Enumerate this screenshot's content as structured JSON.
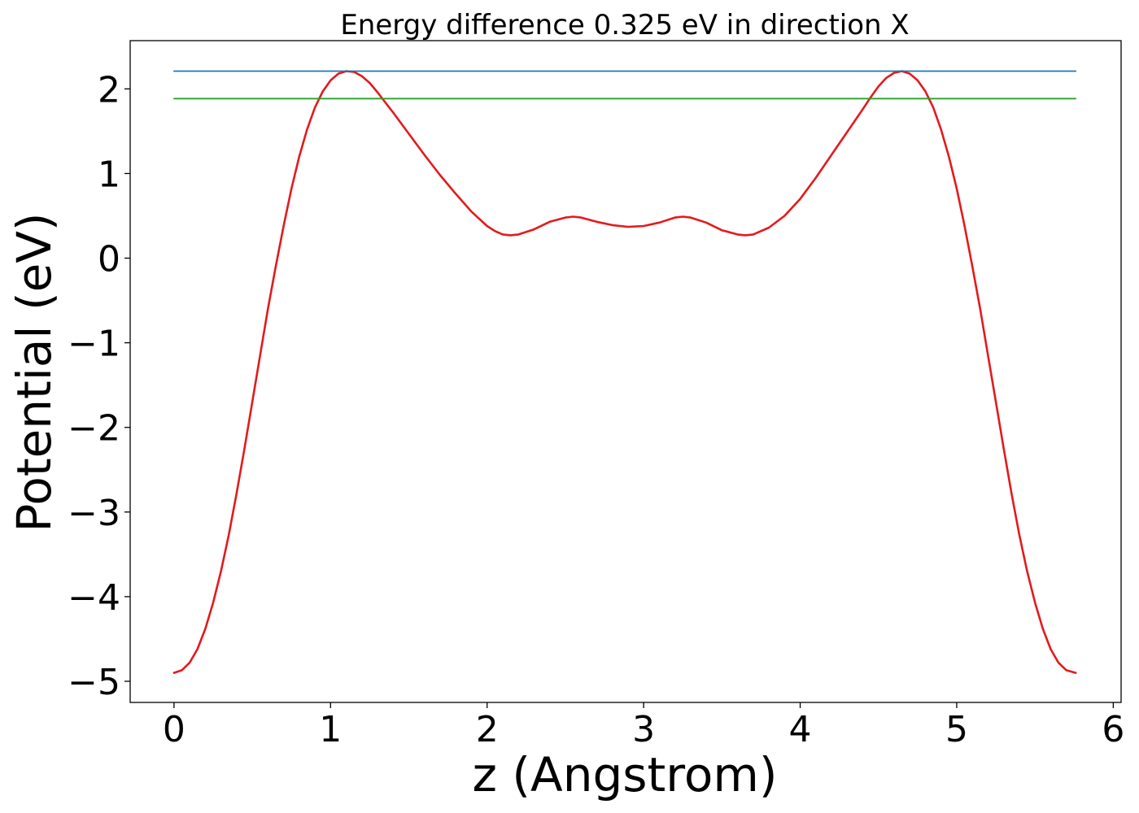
{
  "chart_data": {
    "type": "line",
    "title": "Energy difference 0.325 eV in direction X",
    "xlabel": "z (Angstrom)",
    "ylabel": "Potential (eV)",
    "xlim": [
      -0.28,
      6.05
    ],
    "ylim": [
      -5.25,
      2.57
    ],
    "xticks": [
      0,
      1,
      2,
      3,
      4,
      5,
      6
    ],
    "yticks": [
      -5,
      -4,
      -3,
      -2,
      -1,
      0,
      1,
      2
    ],
    "xtick_labels": [
      "0",
      "1",
      "2",
      "3",
      "4",
      "5",
      "6"
    ],
    "ytick_labels": [
      "−5",
      "−4",
      "−3",
      "−2",
      "−1",
      "0",
      "1",
      "2"
    ],
    "grid": false,
    "series": [
      {
        "kind": "profile",
        "color": "#e31a1c",
        "x": [
          0.0,
          0.05,
          0.1,
          0.15,
          0.2,
          0.25,
          0.3,
          0.35,
          0.4,
          0.45,
          0.5,
          0.55,
          0.6,
          0.65,
          0.7,
          0.75,
          0.8,
          0.85,
          0.9,
          0.95,
          1.0,
          1.05,
          1.1,
          1.15,
          1.2,
          1.25,
          1.3,
          1.35,
          1.4,
          1.5,
          1.6,
          1.7,
          1.8,
          1.9,
          2.0,
          2.05,
          2.1,
          2.15,
          2.2,
          2.3,
          2.4,
          2.5,
          2.55,
          2.6,
          2.7,
          2.8,
          2.9,
          3.0,
          3.1,
          3.2,
          3.25,
          3.3,
          3.4,
          3.5,
          3.6,
          3.65,
          3.7,
          3.8,
          3.9,
          4.0,
          4.1,
          4.2,
          4.3,
          4.4,
          4.45,
          4.5,
          4.55,
          4.6,
          4.65,
          4.7,
          4.75,
          4.8,
          4.85,
          4.9,
          4.95,
          5.0,
          5.05,
          5.1,
          5.15,
          5.2,
          5.25,
          5.3,
          5.35,
          5.4,
          5.45,
          5.5,
          5.55,
          5.6,
          5.65,
          5.7,
          5.76
        ],
        "y": [
          -4.9,
          -4.87,
          -4.78,
          -4.62,
          -4.38,
          -4.07,
          -3.7,
          -3.27,
          -2.78,
          -2.25,
          -1.7,
          -1.15,
          -0.6,
          -0.1,
          0.38,
          0.82,
          1.2,
          1.52,
          1.78,
          1.97,
          2.1,
          2.18,
          2.21,
          2.2,
          2.15,
          2.07,
          1.96,
          1.84,
          1.72,
          1.47,
          1.22,
          0.98,
          0.76,
          0.55,
          0.38,
          0.32,
          0.28,
          0.27,
          0.28,
          0.34,
          0.43,
          0.48,
          0.49,
          0.48,
          0.43,
          0.39,
          0.37,
          0.38,
          0.42,
          0.48,
          0.49,
          0.48,
          0.42,
          0.33,
          0.28,
          0.27,
          0.28,
          0.36,
          0.5,
          0.7,
          0.95,
          1.22,
          1.49,
          1.76,
          1.9,
          2.03,
          2.13,
          2.19,
          2.21,
          2.18,
          2.1,
          1.97,
          1.78,
          1.52,
          1.2,
          0.82,
          0.38,
          -0.1,
          -0.6,
          -1.15,
          -1.7,
          -2.25,
          -2.78,
          -3.27,
          -3.7,
          -4.07,
          -4.38,
          -4.62,
          -4.78,
          -4.87,
          -4.9
        ]
      },
      {
        "kind": "level",
        "color": "#1f77b4",
        "x": [
          0.0,
          5.76
        ],
        "y": [
          2.21,
          2.21
        ]
      },
      {
        "kind": "level",
        "color": "#2ca02c",
        "x": [
          0.0,
          5.76
        ],
        "y": [
          1.885,
          1.885
        ]
      }
    ]
  }
}
